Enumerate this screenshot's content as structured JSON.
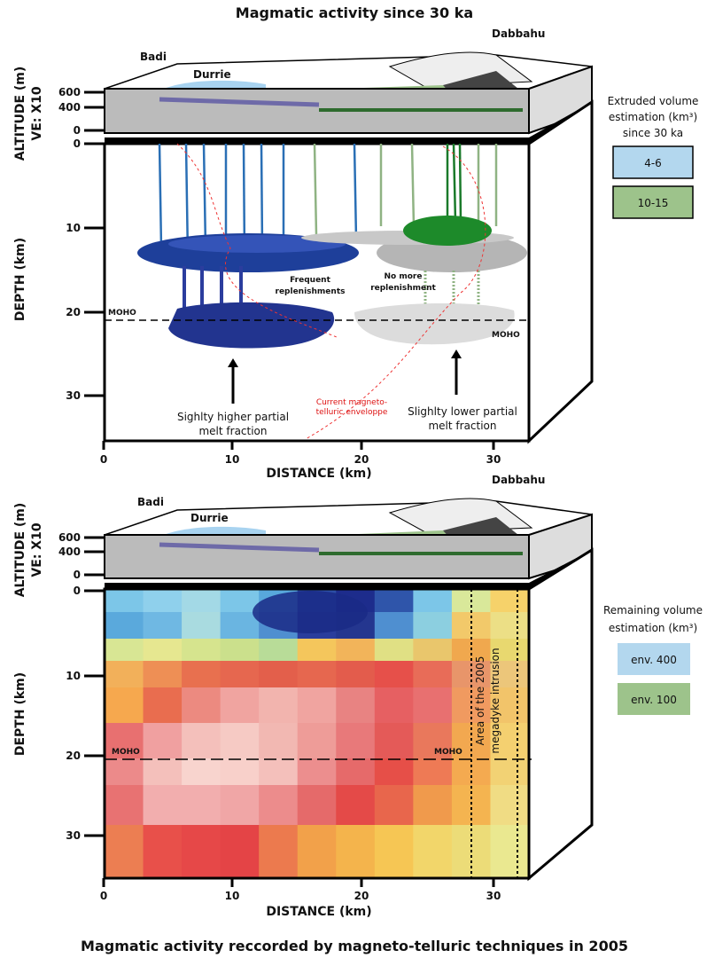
{
  "top_title": "Magmatic activity since 30 ka",
  "bottom_title": "Magmatic activity reccorded by magneto-telluric techniques in 2005",
  "top_panel": {
    "places": {
      "badi": "Badi",
      "durrie": "Durrie",
      "dabbahu": "Dabbahu"
    },
    "altitude_label": "ALTITUDE (m)",
    "ve_label": "VE: X10",
    "altitude_ticks": [
      600,
      400,
      0
    ],
    "depth_label": "DEPTH (km)",
    "depth_ticks": [
      0,
      10,
      20,
      30
    ],
    "distance_label": "DISTANCE (km)",
    "distance_ticks": [
      0,
      10,
      20,
      30
    ],
    "moho_left": "MOHO",
    "moho_right": "MOHO",
    "frequent": [
      "Frequent",
      "replenishments"
    ],
    "no_more": [
      "No more",
      "replenishment"
    ],
    "higher_melt": [
      "Sighlty higher partial",
      "melt fraction"
    ],
    "lower_melt": [
      "Slighlty lower partial",
      "melt fraction"
    ],
    "envelope": [
      "Current magneto-",
      "telluric enveloppe"
    ],
    "legend": {
      "title": [
        "Extruded volume",
        "estimation (km³)",
        "since 30 ka"
      ],
      "items": [
        "4-6",
        "10-15"
      ]
    }
  },
  "bottom_panel": {
    "places": {
      "badi": "Badi",
      "durrie": "Durrie",
      "dabbahu": "Dabbahu"
    },
    "altitude_label": "ALTITUDE (m)",
    "ve_label": "VE: X10",
    "altitude_ticks": [
      600,
      400,
      0
    ],
    "depth_label": "DEPTH (km)",
    "depth_ticks": [
      0,
      10,
      20,
      30
    ],
    "distance_label": "DISTANCE (km)",
    "distance_ticks": [
      0,
      10,
      20,
      30
    ],
    "moho_left": "MOHO",
    "moho_right": "MOHO",
    "intrusion": [
      "Area of the 2005",
      "megadyke intrusion"
    ],
    "legend": {
      "title": [
        "Remaining volume",
        "estimation (km³)"
      ],
      "items": [
        "env. 400",
        "env. 100"
      ]
    }
  }
}
